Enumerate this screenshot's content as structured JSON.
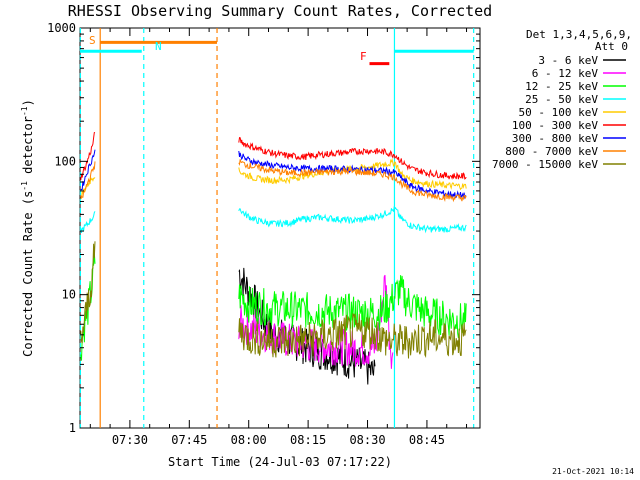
{
  "chart_data": {
    "type": "line",
    "title": "RHESSI Observing Summary Count Rates, Corrected",
    "xlabel": "Start Time (24-Jul-03 07:17:22)",
    "ylabel_main": "Corrected Count Rate (s",
    "ylabel_sup1": "-1",
    "ylabel_mid": " detector",
    "ylabel_sup2": "-1",
    "ylabel_end": ")",
    "yscale": "log",
    "ylim": [
      1,
      1000
    ],
    "xlim": [
      437.4,
      538.4
    ],
    "yticks": [
      {
        "v": 1,
        "label": "1"
      },
      {
        "v": 10,
        "label": "10"
      },
      {
        "v": 100,
        "label": "100"
      },
      {
        "v": 1000,
        "label": "1000"
      }
    ],
    "xticks": [
      {
        "v": 450,
        "label": "07:30"
      },
      {
        "v": 465,
        "label": "07:45"
      },
      {
        "v": 480,
        "label": "08:00"
      },
      {
        "v": 495,
        "label": "08:15"
      },
      {
        "v": 510,
        "label": "08:30"
      },
      {
        "v": 525,
        "label": "08:45"
      }
    ],
    "legend_header": [
      "Det 1,3,4,5,6,9,",
      "Att 0"
    ],
    "footer_date": "21-Oct-2021 10:14",
    "markers": {
      "s_label": "S",
      "n_label": "N",
      "f_label": "F"
    },
    "series": [
      {
        "name": "3 - 6 keV",
        "color": "#000000",
        "seg1": [],
        "seg2": [
          [
            477.5,
            15
          ],
          [
            479,
            12
          ],
          [
            481,
            9.5
          ],
          [
            483,
            7
          ],
          [
            486,
            5.2
          ],
          [
            490,
            4.6
          ],
          [
            495,
            4.0
          ],
          [
            500,
            3.6
          ],
          [
            505,
            3.2
          ],
          [
            510,
            2.8
          ],
          [
            512,
            2.5
          ]
        ]
      },
      {
        "name": "6 - 12 keV",
        "color": "#ff00ff",
        "seg1": [],
        "seg2": [
          [
            477.5,
            6.2
          ],
          [
            480,
            5.6
          ],
          [
            485,
            5.0
          ],
          [
            490,
            4.5
          ],
          [
            495,
            4.2
          ],
          [
            500,
            4.1
          ],
          [
            505,
            4.0
          ],
          [
            510,
            3.9
          ],
          [
            512,
            4.0
          ],
          [
            513.5,
            8
          ],
          [
            514.5,
            13
          ],
          [
            515.5,
            5
          ],
          [
            516.5,
            3
          ]
        ]
      },
      {
        "name": "12 - 25 keV",
        "color": "#00ff00",
        "seg1": [
          [
            437.6,
            4
          ],
          [
            438.5,
            6
          ],
          [
            439.5,
            8
          ],
          [
            440.5,
            12
          ],
          [
            441.2,
            18
          ]
        ],
        "seg2": [
          [
            477.5,
            10
          ],
          [
            480,
            8.5
          ],
          [
            485,
            8
          ],
          [
            490,
            7.8
          ],
          [
            495,
            7.6
          ],
          [
            500,
            7.5
          ],
          [
            505,
            7.4
          ],
          [
            510,
            7.3
          ],
          [
            512,
            7.3
          ],
          [
            514,
            7.5
          ],
          [
            516,
            9
          ],
          [
            518,
            11
          ],
          [
            520,
            9
          ],
          [
            524,
            7.5
          ],
          [
            528,
            6.8
          ],
          [
            532,
            6.5
          ],
          [
            535,
            6.3
          ]
        ]
      },
      {
        "name": "25 - 50 keV",
        "color": "#00ffff",
        "seg1": [
          [
            437.6,
            30
          ],
          [
            439,
            33
          ],
          [
            441.2,
            40
          ]
        ],
        "seg2": [
          [
            477.5,
            45
          ],
          [
            479,
            40
          ],
          [
            482,
            36
          ],
          [
            486,
            34
          ],
          [
            490,
            34.5
          ],
          [
            494,
            37
          ],
          [
            498,
            38
          ],
          [
            502,
            37
          ],
          [
            506,
            36
          ],
          [
            510,
            37
          ],
          [
            514,
            40
          ],
          [
            517,
            44
          ],
          [
            518.5,
            37
          ],
          [
            521,
            33
          ],
          [
            525,
            31
          ],
          [
            530,
            31
          ],
          [
            535,
            32
          ]
        ]
      },
      {
        "name": "50 - 100 keV",
        "color": "#ffcc00",
        "seg1": [
          [
            437.6,
            55
          ],
          [
            439,
            65
          ],
          [
            441.2,
            80
          ]
        ],
        "seg2": [
          [
            477.5,
            85
          ],
          [
            479,
            80
          ],
          [
            482,
            74
          ],
          [
            486,
            72
          ],
          [
            490,
            73
          ],
          [
            494,
            78
          ],
          [
            498,
            82
          ],
          [
            502,
            86
          ],
          [
            506,
            88
          ],
          [
            510,
            90
          ],
          [
            514,
            95
          ],
          [
            517,
            98
          ],
          [
            518.5,
            80
          ],
          [
            521,
            72
          ],
          [
            525,
            68
          ],
          [
            530,
            66
          ],
          [
            535,
            65
          ]
        ]
      },
      {
        "name": "100 - 300 keV",
        "color": "#ff0000",
        "seg1": [
          [
            437.6,
            75
          ],
          [
            439,
            95
          ],
          [
            440.5,
            130
          ],
          [
            441.2,
            165
          ]
        ],
        "seg2": [
          [
            477.5,
            145
          ],
          [
            479,
            135
          ],
          [
            482,
            125
          ],
          [
            486,
            115
          ],
          [
            490,
            110
          ],
          [
            494,
            108
          ],
          [
            498,
            112
          ],
          [
            502,
            115
          ],
          [
            506,
            118
          ],
          [
            510,
            120
          ],
          [
            514,
            118
          ],
          [
            517,
            112
          ],
          [
            518.5,
            100
          ],
          [
            521,
            88
          ],
          [
            525,
            82
          ],
          [
            530,
            78
          ],
          [
            535,
            77
          ]
        ]
      },
      {
        "name": "300 - 800 keV",
        "color": "#0000ff",
        "seg1": [
          [
            437.6,
            60
          ],
          [
            439,
            80
          ],
          [
            441.2,
            120
          ]
        ],
        "seg2": [
          [
            477.5,
            115
          ],
          [
            479,
            105
          ],
          [
            482,
            98
          ],
          [
            486,
            93
          ],
          [
            490,
            90
          ],
          [
            494,
            88
          ],
          [
            498,
            88
          ],
          [
            502,
            88
          ],
          [
            506,
            87
          ],
          [
            510,
            86
          ],
          [
            514,
            85
          ],
          [
            517,
            82
          ],
          [
            518.5,
            75
          ],
          [
            521,
            65
          ],
          [
            525,
            60
          ],
          [
            530,
            57
          ],
          [
            535,
            55
          ]
        ]
      },
      {
        "name": "800 - 7000 keV",
        "color": "#ff8000",
        "seg1": [
          [
            437.6,
            50
          ],
          [
            439,
            65
          ],
          [
            441.2,
            95
          ]
        ],
        "seg2": [
          [
            477.5,
            100
          ],
          [
            479,
            95
          ],
          [
            482,
            90
          ],
          [
            486,
            85
          ],
          [
            490,
            82
          ],
          [
            494,
            82
          ],
          [
            498,
            83
          ],
          [
            502,
            84
          ],
          [
            506,
            84
          ],
          [
            510,
            82
          ],
          [
            514,
            80
          ],
          [
            517,
            76
          ],
          [
            518.5,
            68
          ],
          [
            521,
            60
          ],
          [
            525,
            56
          ],
          [
            530,
            54
          ],
          [
            535,
            53
          ]
        ]
      },
      {
        "name": "7000 - 15000 keV",
        "color": "#808000",
        "seg1": [
          [
            437.6,
            4.5
          ],
          [
            438.5,
            6
          ],
          [
            439.5,
            9
          ],
          [
            440.5,
            14
          ],
          [
            441.2,
            22
          ]
        ],
        "seg2": [
          [
            477.5,
            5.5
          ],
          [
            480,
            4.8
          ],
          [
            485,
            4.6
          ],
          [
            490,
            4.5
          ],
          [
            495,
            4.6
          ],
          [
            500,
            4.9
          ],
          [
            505,
            5.2
          ],
          [
            510,
            5.4
          ],
          [
            512,
            5.2
          ],
          [
            514,
            4.6
          ],
          [
            518,
            4.4
          ],
          [
            522,
            4.6
          ],
          [
            526,
            4.8
          ],
          [
            530,
            4.7
          ],
          [
            535,
            4.6
          ]
        ]
      }
    ],
    "vlines": [
      {
        "x": 437.5,
        "color": "#00ffff",
        "dash": true
      },
      {
        "x": 442.5,
        "color": "#ff8000",
        "dash": false
      },
      {
        "x": 453.5,
        "color": "#00ffff",
        "dash": true
      },
      {
        "x": 472.0,
        "color": "#ff8000",
        "dash": true
      },
      {
        "x": 516.8,
        "color": "#00ffff",
        "dash": false
      },
      {
        "x": 536.8,
        "color": "#00ffff",
        "dash": true
      }
    ],
    "hbars": [
      {
        "x0": 437.4,
        "x1": 453.0,
        "y": 670,
        "color": "#00ffff",
        "width": 3
      },
      {
        "x0": 442.5,
        "x1": 472.0,
        "y": 780,
        "color": "#ff8000",
        "width": 3
      },
      {
        "x0": 516.8,
        "x1": 536.8,
        "y": 670,
        "color": "#00ffff",
        "width": 3
      },
      {
        "x0": 510.5,
        "x1": 515.5,
        "y": 540,
        "color": "#ff0000",
        "width": 3
      }
    ]
  }
}
